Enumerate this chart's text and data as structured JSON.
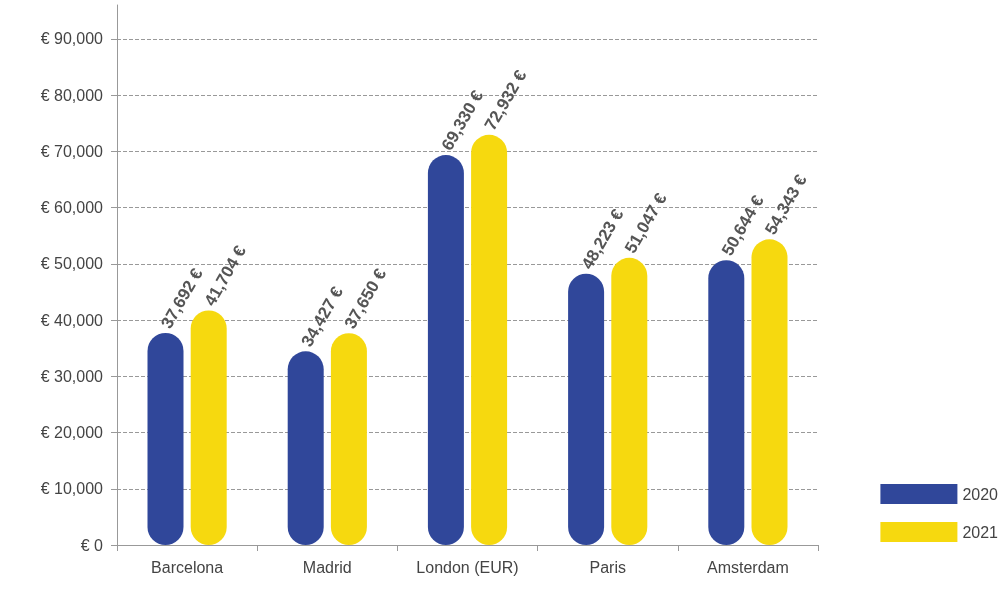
{
  "chart_data": {
    "type": "bar",
    "categories": [
      "Barcelona",
      "Madrid",
      "London (EUR)",
      "Paris",
      "Amsterdam"
    ],
    "series": [
      {
        "name": "2020",
        "color": "#30479a",
        "values": [
          37692,
          34427,
          69330,
          48223,
          50644
        ],
        "value_labels": [
          "37,692 €",
          "34,427 €",
          "69,330 €",
          "48,223 €",
          "50,644 €"
        ]
      },
      {
        "name": "2021",
        "color": "#f6d90f",
        "values": [
          41704,
          37650,
          72932,
          51047,
          54343
        ],
        "value_labels": [
          "41,704 €",
          "37,650 €",
          "72,932 €",
          "51,047 €",
          "54,343 €"
        ]
      }
    ],
    "ylim": [
      0,
      96000
    ],
    "yticks": [
      {
        "value": 0,
        "label": "€ 0"
      },
      {
        "value": 10000,
        "label": "€ 10,000"
      },
      {
        "value": 20000,
        "label": "€ 20,000"
      },
      {
        "value": 30000,
        "label": "€ 30,000"
      },
      {
        "value": 40000,
        "label": "€ 40,000"
      },
      {
        "value": 50000,
        "label": "€ 50,000"
      },
      {
        "value": 60000,
        "label": "€ 60,000"
      },
      {
        "value": 70000,
        "label": "€ 70,000"
      },
      {
        "value": 80000,
        "label": "€ 80,000"
      },
      {
        "value": 90000,
        "label": "€ 90,000"
      }
    ],
    "grid": "y",
    "legend": "bottom right"
  }
}
